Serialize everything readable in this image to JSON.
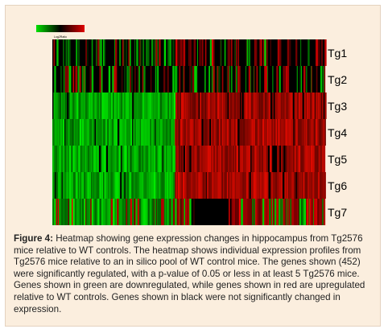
{
  "chart_data": {
    "type": "heatmap",
    "rows": [
      "Tg1",
      "Tg2",
      "Tg3",
      "Tg4",
      "Tg5",
      "Tg6",
      "Tg7"
    ],
    "gene_count": 452,
    "color_scale": {
      "low_color": "#00e000",
      "mid_color": "#000000",
      "high_color": "#e00000",
      "label": "Log2Ratio"
    },
    "description": "Green block for roughly the first 45% of genes (downregulated), red block for remaining genes (upregulated); rows Tg1 and Tg2 are mostly black (not significant); Tg7 mixes green/red with a black band in the middle."
  },
  "caption": {
    "label": "Figure 4:",
    "text": "Heatmap showing gene expression changes in hippocampus from Tg2576 mice relative to WT controls. The heatmap shows individual expression profiles from Tg2576 mice relative to an in silico pool of WT control mice. The genes shown (452) were significantly regulated, with a p-value of 0.05 or less in at least 5 Tg2576 mice. Genes shown in green are downregulated, while genes shown in red are upregulated relative to WT controls. Genes shown in black were not significantly changed in expression."
  }
}
